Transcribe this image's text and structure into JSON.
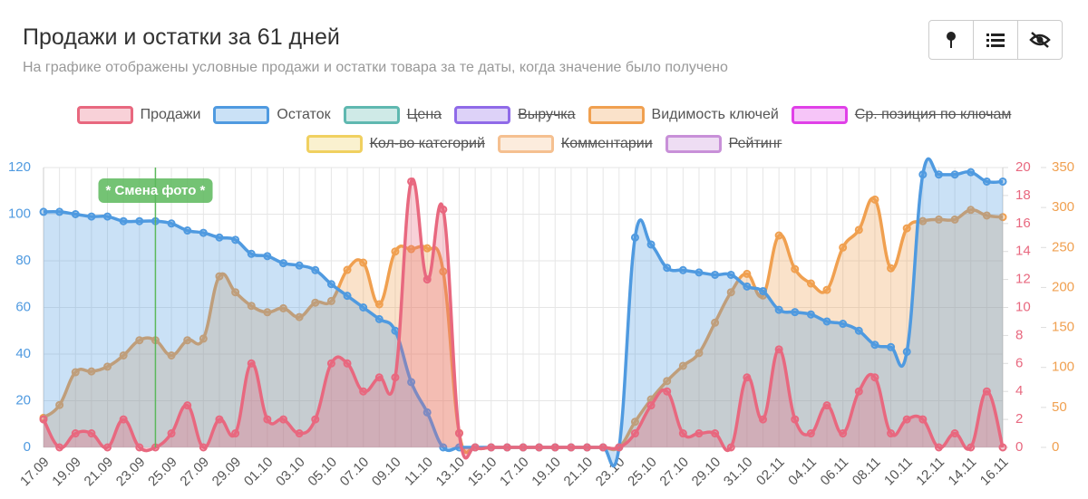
{
  "chart_data": {
    "type": "line",
    "title": "Продажи и остатки за 61 дней",
    "subtitle": "На графике отображены условные продажи и остатки товара за те даты, когда значение было получено",
    "categories": [
      "17.09",
      null,
      "19.09",
      null,
      "21.09",
      null,
      "23.09",
      null,
      "25.09",
      null,
      "27.09",
      null,
      "29.09",
      null,
      "01.10",
      null,
      "03.10",
      null,
      "05.10",
      null,
      "07.10",
      null,
      "09.10",
      null,
      "11.10",
      null,
      "13.10",
      null,
      "15.10",
      null,
      "17.10",
      null,
      "19.10",
      null,
      "21.10",
      null,
      "23.10",
      null,
      "25.10",
      null,
      "27.10",
      null,
      "29.10",
      null,
      "31.10",
      null,
      "02.11",
      null,
      "04.11",
      null,
      "06.11",
      null,
      "08.11",
      null,
      "10.11",
      null,
      "12.11",
      null,
      "14.11",
      null,
      "16.11"
    ],
    "series": [
      {
        "name": "Продажи",
        "color": "#e8687f",
        "axis": "y2",
        "values": [
          2,
          0,
          1,
          1,
          0,
          2,
          0,
          0,
          1,
          3,
          0,
          2,
          1,
          6,
          2,
          2,
          1,
          2,
          6,
          6,
          4,
          5,
          5,
          19,
          12,
          17,
          1,
          0,
          0,
          0,
          0,
          0,
          0,
          0,
          0,
          0,
          0,
          1,
          3,
          4,
          1,
          1,
          1,
          0,
          5,
          2,
          7,
          2,
          1,
          3,
          1,
          4,
          5,
          1,
          2,
          2,
          0,
          1,
          0,
          4,
          0
        ]
      },
      {
        "name": "Остаток",
        "color": "#4f9ae0",
        "axis": "y",
        "values": [
          101,
          101,
          100,
          99,
          99,
          97,
          97,
          97,
          96,
          93,
          92,
          90,
          89,
          83,
          82,
          79,
          78,
          76,
          70,
          65,
          60,
          55,
          50,
          28,
          15,
          0,
          0,
          0,
          0,
          0,
          0,
          0,
          0,
          0,
          0,
          0,
          0,
          90,
          87,
          77,
          76,
          75,
          74,
          74,
          69,
          67,
          59,
          58,
          57,
          54,
          53,
          50,
          44,
          43,
          41,
          117,
          117,
          117,
          118,
          114,
          114
        ]
      },
      {
        "name": "Цена",
        "color": "#5fb8b0",
        "hidden": true
      },
      {
        "name": "Выручка",
        "color": "#8f6ae8",
        "hidden": true
      },
      {
        "name": "Видимость ключей",
        "color": "#f0a050",
        "axis": "y3",
        "values": [
          37,
          53,
          94,
          95,
          101,
          115,
          134,
          134,
          115,
          134,
          136,
          214,
          194,
          177,
          169,
          174,
          163,
          181,
          183,
          222,
          231,
          179,
          245,
          248,
          249,
          220,
          18,
          0,
          0,
          0,
          0,
          0,
          0,
          0,
          0,
          0,
          0,
          32,
          60,
          83,
          102,
          118,
          156,
          194,
          217,
          190,
          265,
          223,
          205,
          197,
          250,
          272,
          310,
          224,
          274,
          283,
          285,
          285,
          297,
          290,
          288
        ]
      },
      {
        "name": "Ср. позиция по ключам",
        "color": "#e040e8",
        "hidden": true
      },
      {
        "name": "Кол-во категорий",
        "color": "#f0d060",
        "hidden": true
      },
      {
        "name": "Комментарии",
        "color": "#f5c090",
        "hidden": true
      },
      {
        "name": "Рейтинг",
        "color": "#c890d8",
        "hidden": true
      }
    ],
    "ylim": [
      0,
      120
    ],
    "yticks": [
      0,
      20,
      40,
      60,
      80,
      100,
      120
    ],
    "y2lim": [
      0,
      20
    ],
    "y2ticks": [
      0,
      2,
      4,
      6,
      8,
      10,
      12,
      14,
      16,
      18,
      20
    ],
    "y3lim": [
      0,
      350
    ],
    "y3ticks": [
      0,
      50,
      100,
      150,
      200,
      250,
      300,
      350
    ],
    "grid": true,
    "annotation": {
      "text": "* Смена фото *",
      "index": 7,
      "color": "#5cb85c"
    }
  }
}
